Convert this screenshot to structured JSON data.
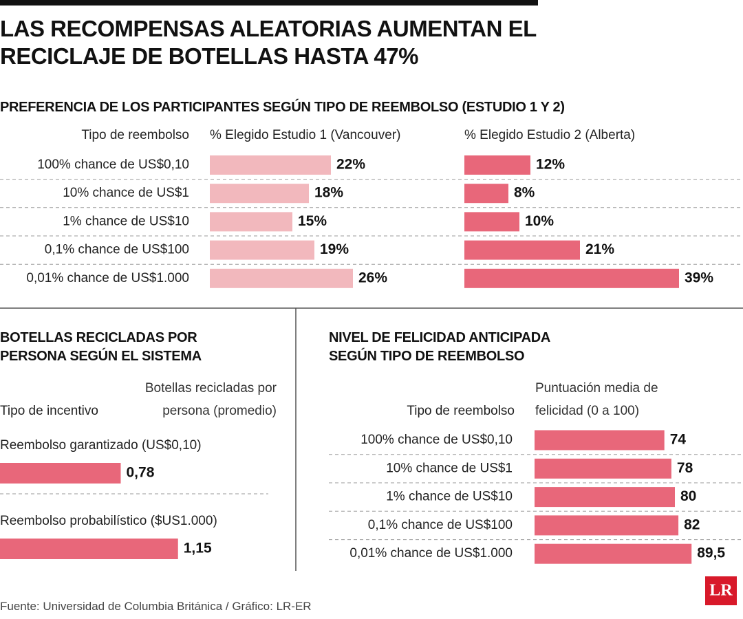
{
  "title": "LAS RECOMPENSAS ALEATORIAS AUMENTAN EL RECICLAJE DE BOTELLAS HASTA 47%",
  "source": "Fuente: Universidad de Columbia Británica / Gráfico: LR-ER",
  "logo": "LR",
  "chart_data": [
    {
      "type": "bar",
      "title": "PREFERENCIA DE LOS PARTICIPANTES SEGÚN TIPO DE REEMBOLSO (ESTUDIO 1 Y 2)",
      "category_label": "Tipo de reembolso",
      "categories": [
        "100% chance de US$0,10",
        "10% chance de US$1",
        "1% chance de US$10",
        "0,1% chance de US$100",
        "0,01% chance de US$1.000"
      ],
      "series": [
        {
          "name": "% Elegido Estudio 1 (Vancouver)",
          "color": "#f2b8bd",
          "values": [
            22,
            18,
            15,
            19,
            26
          ],
          "value_labels": [
            "22%",
            "18%",
            "15%",
            "19%",
            "26%"
          ]
        },
        {
          "name": "% Elegido Estudio 2 (Alberta)",
          "color": "#e8677a",
          "values": [
            12,
            8,
            10,
            21,
            39
          ],
          "value_labels": [
            "12%",
            "8%",
            "10%",
            "21%",
            "39%"
          ]
        }
      ]
    },
    {
      "type": "bar",
      "title": "BOTELLAS RECICLADAS POR PERSONA SEGÚN EL SISTEMA",
      "category_label": "Tipo de incentivo",
      "value_label": "Botellas recicladas por persona (promedio)",
      "categories": [
        "Reembolso garantizado (US$0,10)",
        "Reembolso probabilístico ($US1.000)"
      ],
      "values": [
        0.78,
        1.15
      ],
      "value_labels": [
        "0,78",
        "1,15"
      ],
      "color": "#e8677a"
    },
    {
      "type": "bar",
      "title": "NIVEL DE FELICIDAD ANTICIPADA SEGÚN TIPO DE REEMBOLSO",
      "category_label": "Tipo de reembolso",
      "value_label": "Puntuación media de felicidad (0 a 100)",
      "categories": [
        "100% chance de US$0,10",
        "10% chance de US$1",
        "1% chance de US$10",
        "0,1% chance de US$100",
        "0,01% chance de US$1.000"
      ],
      "values": [
        74,
        78,
        80,
        82,
        89.5
      ],
      "value_labels": [
        "74",
        "78",
        "80",
        "82",
        "89,5"
      ],
      "color": "#e8677a"
    }
  ]
}
